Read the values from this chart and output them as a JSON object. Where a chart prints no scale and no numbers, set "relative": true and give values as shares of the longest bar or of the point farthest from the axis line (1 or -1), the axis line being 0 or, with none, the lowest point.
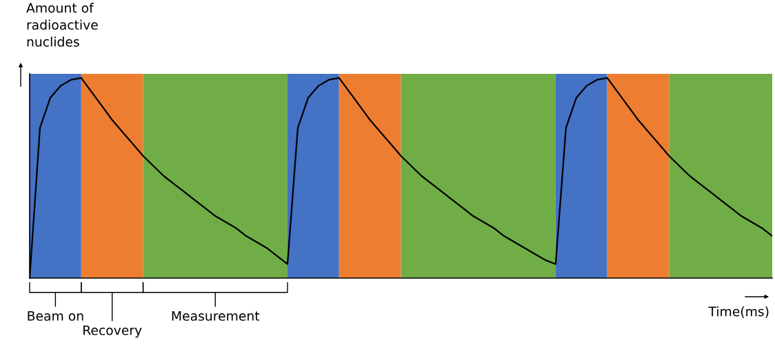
{
  "chart_data": {
    "type": "line",
    "relative": true,
    "ylabel": "Amount of\nradioactive\nnuclides",
    "xlabel": "Time(ms)",
    "legend": false,
    "marker": "none",
    "line_style": "solid",
    "categories": [
      null,
      null,
      null,
      null,
      null,
      null,
      null,
      null,
      null,
      null,
      null,
      null,
      null,
      null,
      null,
      null,
      null,
      null,
      null,
      null,
      null,
      null,
      null,
      null,
      null,
      null,
      null,
      null,
      null,
      null,
      null,
      null,
      null,
      null,
      null,
      null,
      null,
      null,
      null,
      null,
      null,
      null,
      null,
      null,
      null,
      null,
      null,
      null,
      null,
      null,
      null,
      null,
      null,
      null,
      null,
      null,
      null,
      null,
      null,
      null,
      null,
      null,
      null,
      null,
      null,
      null,
      null,
      null,
      null,
      null,
      null,
      null,
      null
    ],
    "series": [
      {
        "color": "#000000",
        "values": [
          0,
          0.75,
          0.9,
          0.96,
          0.99,
          1.0,
          0.93,
          0.86,
          0.79,
          0.73,
          0.67,
          0.61,
          0.56,
          0.51,
          0.47,
          0.43,
          0.39,
          0.35,
          0.31,
          0.28,
          0.25,
          0.21,
          0.18,
          0.15,
          0.11,
          0.07,
          0.75,
          0.9,
          0.96,
          0.99,
          1.0,
          0.93,
          0.86,
          0.79,
          0.73,
          0.67,
          0.61,
          0.56,
          0.51,
          0.47,
          0.43,
          0.39,
          0.35,
          0.31,
          0.28,
          0.25,
          0.21,
          0.18,
          0.15,
          0.12,
          0.09,
          0.07,
          0.75,
          0.9,
          0.96,
          0.99,
          1.0,
          0.93,
          0.86,
          0.79,
          0.73,
          0.67,
          0.61,
          0.56,
          0.51,
          0.47,
          0.43,
          0.39,
          0.35,
          0.31,
          0.28,
          0.25,
          0.21
        ]
      }
    ],
    "annotations": [
      "Beam on",
      "Recovery",
      "Measurement"
    ]
  }
}
